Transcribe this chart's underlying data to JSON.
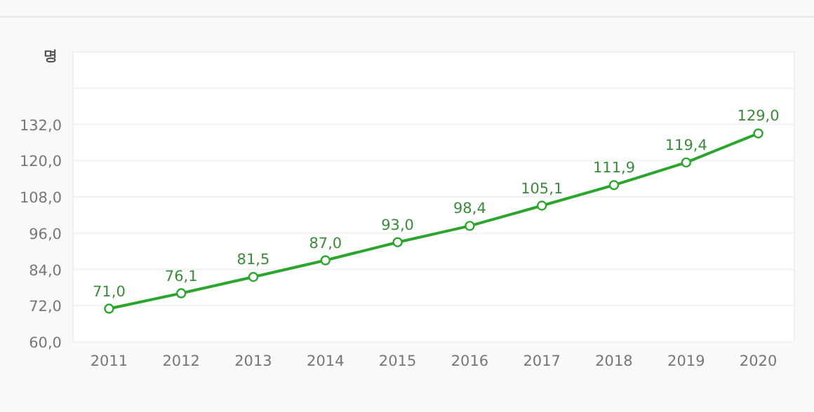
{
  "chart_data": {
    "type": "line",
    "ylabel": "명",
    "categories": [
      "2011",
      "2012",
      "2013",
      "2014",
      "2015",
      "2016",
      "2017",
      "2018",
      "2019",
      "2020"
    ],
    "series": [
      {
        "color": "#2ca52c",
        "values": [
          71.0,
          76.1,
          81.5,
          87.0,
          93.0,
          98.4,
          105.1,
          111.9,
          119.4,
          129.0
        ],
        "value_labels": [
          "71,0",
          "76,1",
          "81,5",
          "87,0",
          "93,0",
          "98,4",
          "105,1",
          "111,9",
          "119,4",
          "129,0"
        ]
      }
    ],
    "ylim": [
      60,
      156
    ],
    "yticks": [
      {
        "value": 60,
        "label": "60,0"
      },
      {
        "value": 72,
        "label": "72,0"
      },
      {
        "value": 84,
        "label": "84,0"
      },
      {
        "value": 96,
        "label": "96,0"
      },
      {
        "value": 108,
        "label": "108,0"
      },
      {
        "value": 120,
        "label": "120,0"
      },
      {
        "value": 132,
        "label": "132,0"
      },
      {
        "value": 144,
        "label": null
      }
    ],
    "grid": "y",
    "marker": "circle",
    "line_style": "solid"
  }
}
